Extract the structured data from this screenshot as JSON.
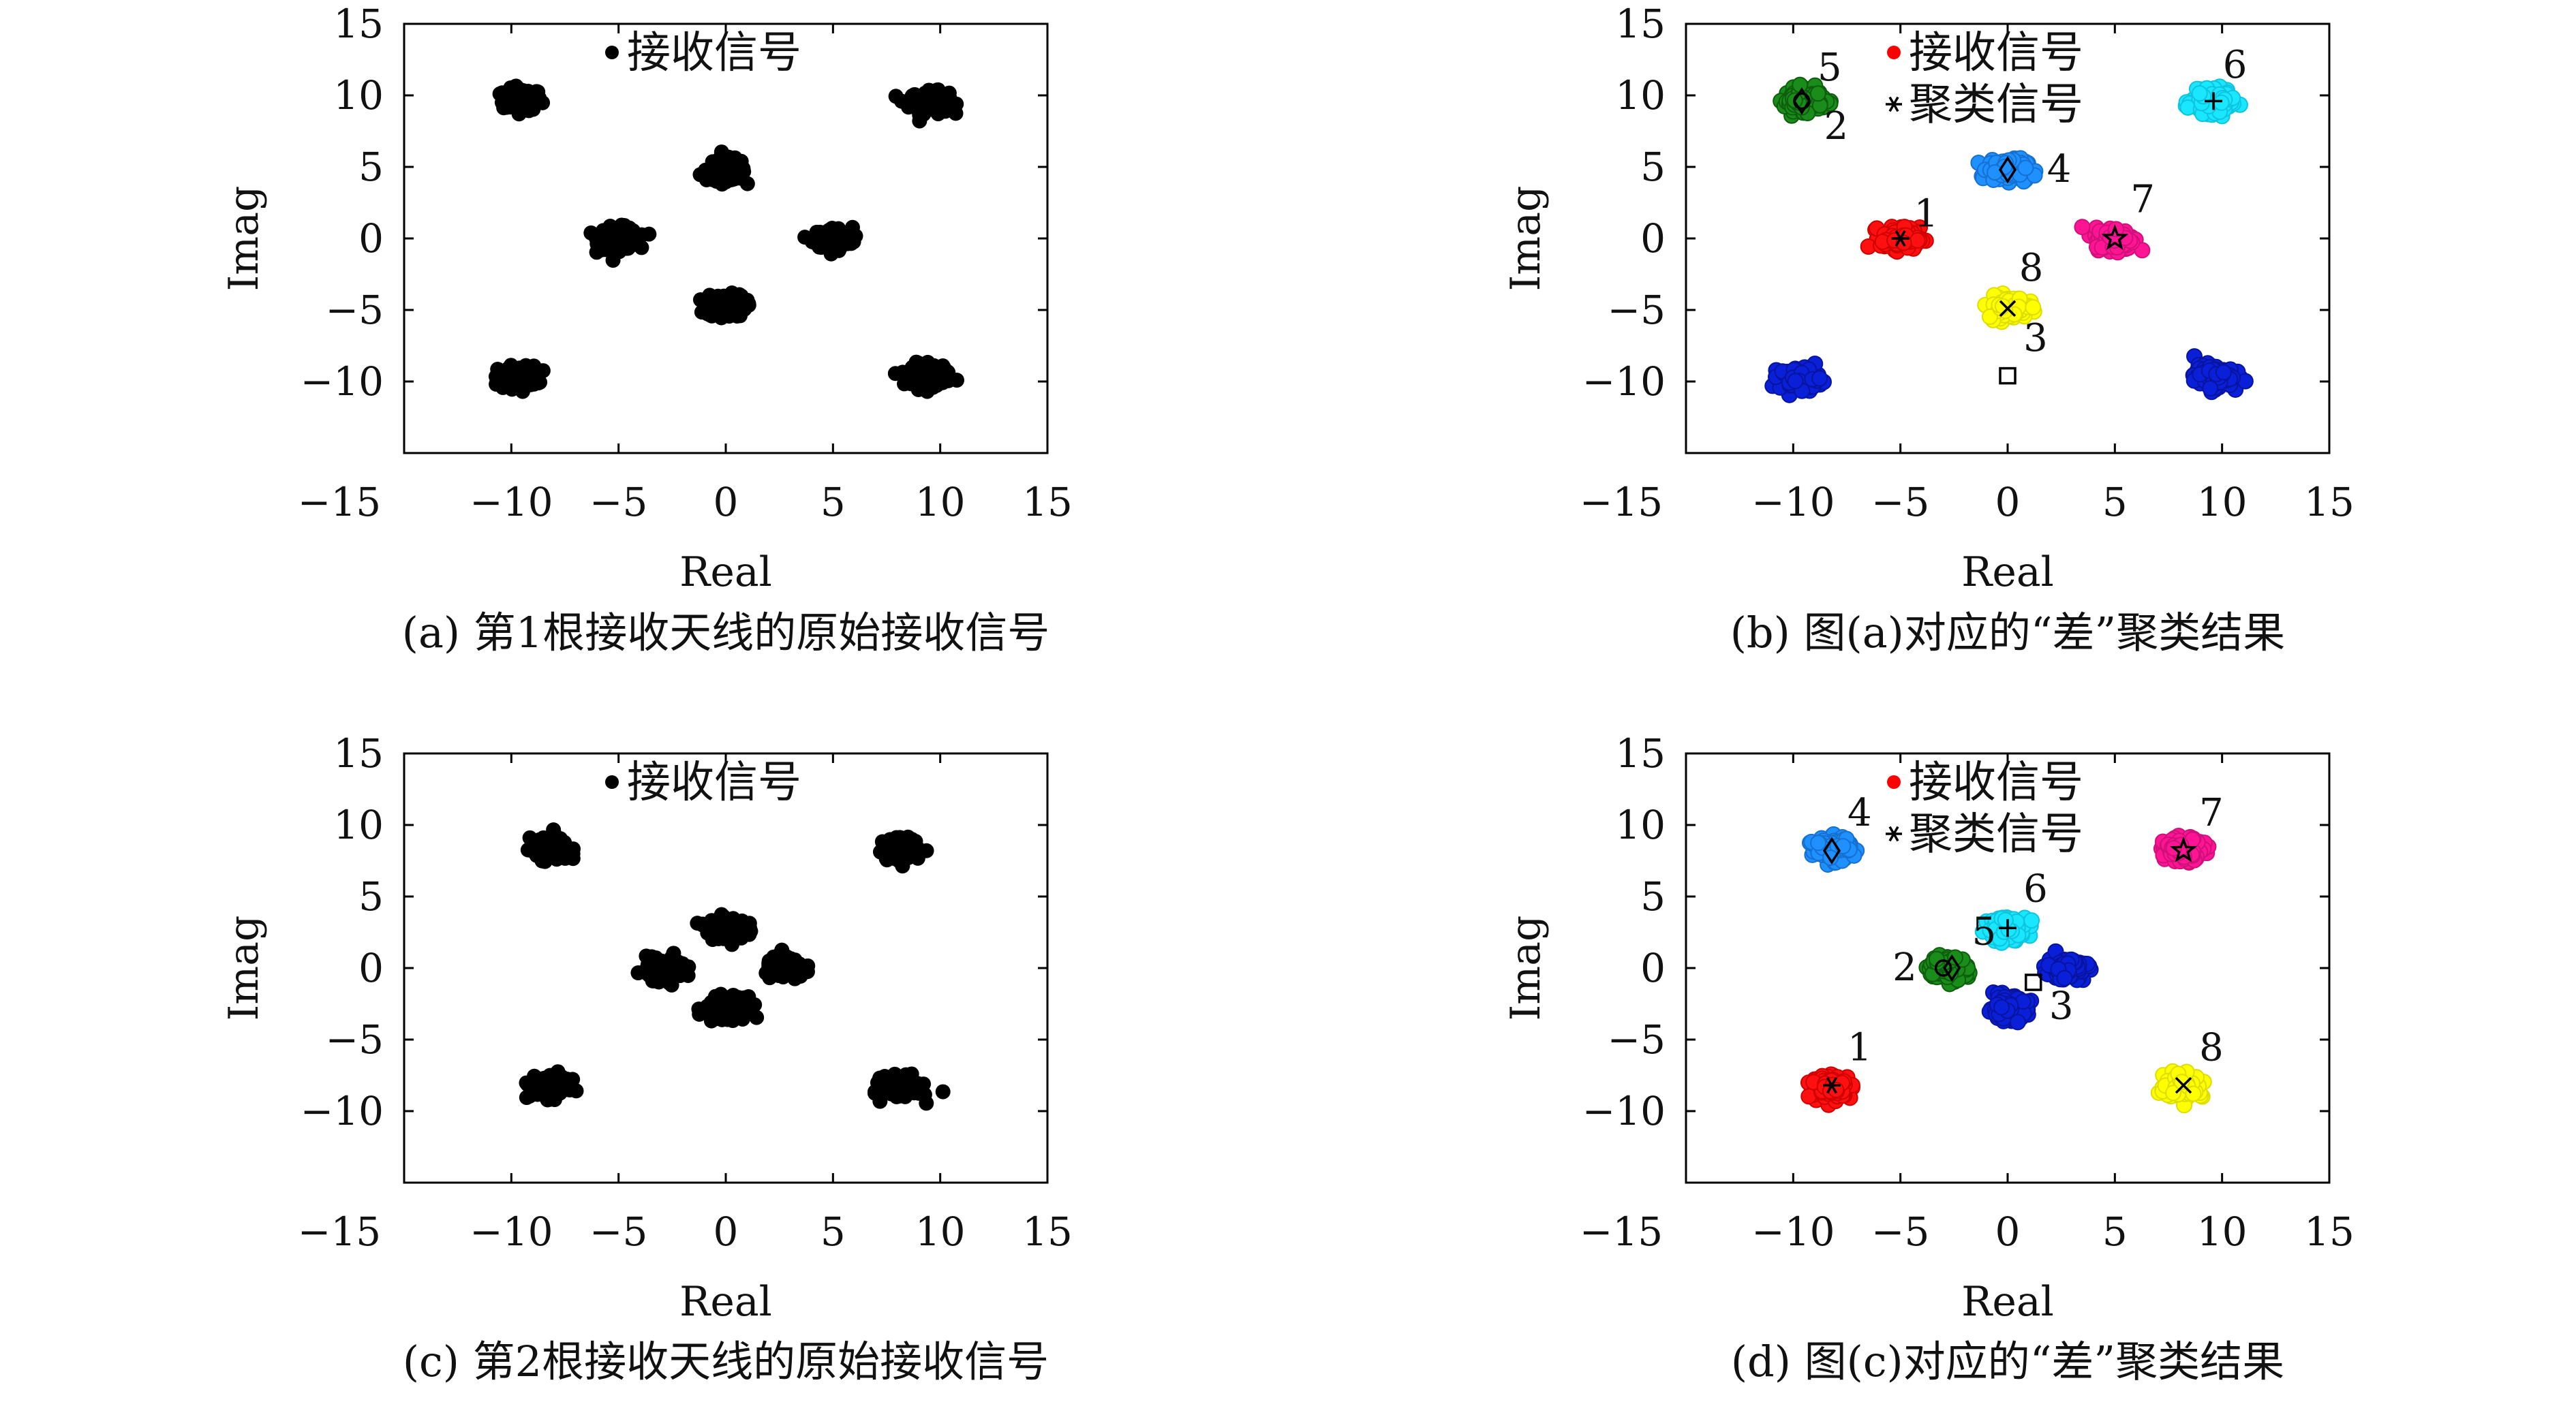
{
  "chart_data": [
    {
      "type": "scatter",
      "panel": "a",
      "caption": "(a) 第1根接收天线的原始接收信号",
      "xlabel": "Real",
      "ylabel": "Imag",
      "xlim": [
        -15,
        15
      ],
      "ylim": [
        -15,
        15
      ],
      "xticks": [
        "−15",
        "−10",
        "−5",
        "0",
        "5",
        "10",
        "15"
      ],
      "yticks": [
        "15",
        "10",
        "5",
        "0",
        "−5",
        "−10"
      ],
      "legend": [
        {
          "label": "接收信号",
          "marker": "dot",
          "color": "#000000"
        }
      ],
      "legend_position": "top-center",
      "series": [
        {
          "name": "接收信号",
          "color": "#000000",
          "centers": [
            [
              -9.5,
              9.7
            ],
            [
              9.5,
              9.5
            ],
            [
              0,
              4.8
            ],
            [
              -5,
              0
            ],
            [
              5,
              0
            ],
            [
              0,
              -4.7
            ],
            [
              -9.7,
              -9.7
            ],
            [
              9.6,
              -9.5
            ]
          ]
        }
      ]
    },
    {
      "type": "scatter",
      "panel": "b",
      "caption": "(b) 图(a)对应的“差”聚类结果",
      "xlabel": "Real",
      "ylabel": "Imag",
      "xlim": [
        -15,
        15
      ],
      "ylim": [
        -15,
        15
      ],
      "xticks": [
        "−15",
        "−10",
        "−5",
        "0",
        "5",
        "10",
        "15"
      ],
      "yticks": [
        "15",
        "10",
        "5",
        "0",
        "−5",
        "−10"
      ],
      "legend": [
        {
          "label": "接收信号",
          "marker": "dot",
          "color": "#ff0000"
        },
        {
          "label": "聚类信号",
          "marker": "star",
          "color": "#000000"
        }
      ],
      "legend_position": "top-center",
      "clusters": [
        {
          "x": -9.5,
          "y": 9.7,
          "color": "#1a8c1a",
          "edge": "#0d5e0d"
        },
        {
          "x": 9.5,
          "y": 9.5,
          "color": "#19e6ff",
          "edge": "#0fc4dd"
        },
        {
          "x": 0,
          "y": 4.8,
          "color": "#1e90ff",
          "edge": "#1670d0"
        },
        {
          "x": -5,
          "y": 0,
          "color": "#ff1010",
          "edge": "#d00000"
        },
        {
          "x": 5,
          "y": 0,
          "color": "#ff1493",
          "edge": "#d0107a"
        },
        {
          "x": 0,
          "y": -4.8,
          "color": "#ffff00",
          "edge": "#dddd00"
        },
        {
          "x": -9.7,
          "y": -9.8,
          "color": "#0a1fd8",
          "edge": "#0814a0"
        },
        {
          "x": 9.6,
          "y": -9.6,
          "color": "#0a1fd8",
          "edge": "#0814a0"
        }
      ],
      "centroids": [
        {
          "id": "1",
          "x": -5,
          "y": 0,
          "marker": "star",
          "label_dx": 1.2,
          "label_dy": 1.7
        },
        {
          "id": "2",
          "x": -9.6,
          "y": 9.6,
          "marker": "circle",
          "label_dx": 1.6,
          "label_dy": -1.8
        },
        {
          "id": "3",
          "x": 0,
          "y": -9.6,
          "marker": "square",
          "label_dx": 1.3,
          "label_dy": 2.6
        },
        {
          "id": "4",
          "x": 0,
          "y": 4.8,
          "marker": "diamond",
          "label_dx": 2.4,
          "label_dy": 0
        },
        {
          "id": "5",
          "x": -9.6,
          "y": 9.6,
          "marker": "diamond",
          "label_dx": 1.3,
          "label_dy": 2.3
        },
        {
          "id": "6",
          "x": 9.6,
          "y": 9.6,
          "marker": "plus",
          "label_dx": 1.0,
          "label_dy": 2.5
        },
        {
          "id": "7",
          "x": 5,
          "y": 0,
          "marker": "pentagram",
          "label_dx": 1.3,
          "label_dy": 2.7
        },
        {
          "id": "8",
          "x": 0,
          "y": -4.9,
          "marker": "x",
          "label_dx": 1.1,
          "label_dy": 2.8
        }
      ]
    },
    {
      "type": "scatter",
      "panel": "c",
      "caption": "(c) 第2根接收天线的原始接收信号",
      "xlabel": "Real",
      "ylabel": "Imag",
      "xlim": [
        -15,
        15
      ],
      "ylim": [
        -15,
        15
      ],
      "xticks": [
        "−15",
        "−10",
        "−5",
        "0",
        "5",
        "10",
        "15"
      ],
      "yticks": [
        "15",
        "10",
        "5",
        "0",
        "−5",
        "−10"
      ],
      "legend": [
        {
          "label": "接收信号",
          "marker": "dot",
          "color": "#000000"
        }
      ],
      "legend_position": "top-center",
      "series": [
        {
          "name": "接收信号",
          "color": "#000000",
          "centers": [
            [
              -8.2,
              8.3
            ],
            [
              8.2,
              8.3
            ],
            [
              0,
              2.8
            ],
            [
              -2.8,
              0
            ],
            [
              2.8,
              0
            ],
            [
              0,
              -2.8
            ],
            [
              -8.2,
              -8.3
            ],
            [
              8.2,
              -8.3
            ]
          ]
        }
      ]
    },
    {
      "type": "scatter",
      "panel": "d",
      "caption": "(d) 图(c)对应的“差”聚类结果",
      "xlabel": "Real",
      "ylabel": "Imag",
      "xlim": [
        -15,
        15
      ],
      "ylim": [
        -15,
        15
      ],
      "xticks": [
        "−15",
        "−10",
        "−5",
        "0",
        "5",
        "10",
        "15"
      ],
      "yticks": [
        "15",
        "10",
        "5",
        "0",
        "−5",
        "−10"
      ],
      "legend": [
        {
          "label": "接收信号",
          "marker": "dot",
          "color": "#ff0000"
        },
        {
          "label": "聚类信号",
          "marker": "star",
          "color": "#000000"
        }
      ],
      "legend_position": "top-center",
      "clusters": [
        {
          "x": -8.2,
          "y": 8.3,
          "color": "#1e90ff",
          "edge": "#1670d0"
        },
        {
          "x": 8.2,
          "y": 8.3,
          "color": "#ff1493",
          "edge": "#d0107a"
        },
        {
          "x": 0,
          "y": 2.8,
          "color": "#19e6ff",
          "edge": "#0fc4dd"
        },
        {
          "x": -2.8,
          "y": 0,
          "color": "#1a8c1a",
          "edge": "#0d5e0d"
        },
        {
          "x": 2.8,
          "y": 0,
          "color": "#0a1fd8",
          "edge": "#0814a0"
        },
        {
          "x": 0,
          "y": -2.8,
          "color": "#0a1fd8",
          "edge": "#0814a0"
        },
        {
          "x": -8.2,
          "y": -8.3,
          "color": "#ff1010",
          "edge": "#d00000"
        },
        {
          "x": 8.2,
          "y": -8.3,
          "color": "#ffff00",
          "edge": "#dddd00"
        }
      ],
      "centroids": [
        {
          "id": "1",
          "x": -8.2,
          "y": -8.2,
          "marker": "star",
          "label_dx": 1.3,
          "label_dy": 2.6
        },
        {
          "id": "2",
          "x": -3.0,
          "y": 0,
          "marker": "circle",
          "label_dx": -1.8,
          "label_dy": 0
        },
        {
          "id": "3",
          "x": 1.2,
          "y": -1.0,
          "marker": "square",
          "label_dx": 1.3,
          "label_dy": -1.7
        },
        {
          "id": "4",
          "x": -8.2,
          "y": 8.2,
          "marker": "diamond",
          "label_dx": 1.3,
          "label_dy": 2.6
        },
        {
          "id": "5",
          "x": -2.6,
          "y": 0,
          "marker": "diamond",
          "label_dx": 1.5,
          "label_dy": 2.5
        },
        {
          "id": "6",
          "x": 0,
          "y": 2.8,
          "marker": "plus",
          "label_dx": 1.3,
          "label_dy": 2.7
        },
        {
          "id": "7",
          "x": 8.2,
          "y": 8.2,
          "marker": "pentagram",
          "label_dx": 1.3,
          "label_dy": 2.6
        },
        {
          "id": "8",
          "x": 8.2,
          "y": -8.2,
          "marker": "x",
          "label_dx": 1.3,
          "label_dy": 2.6
        }
      ]
    }
  ]
}
